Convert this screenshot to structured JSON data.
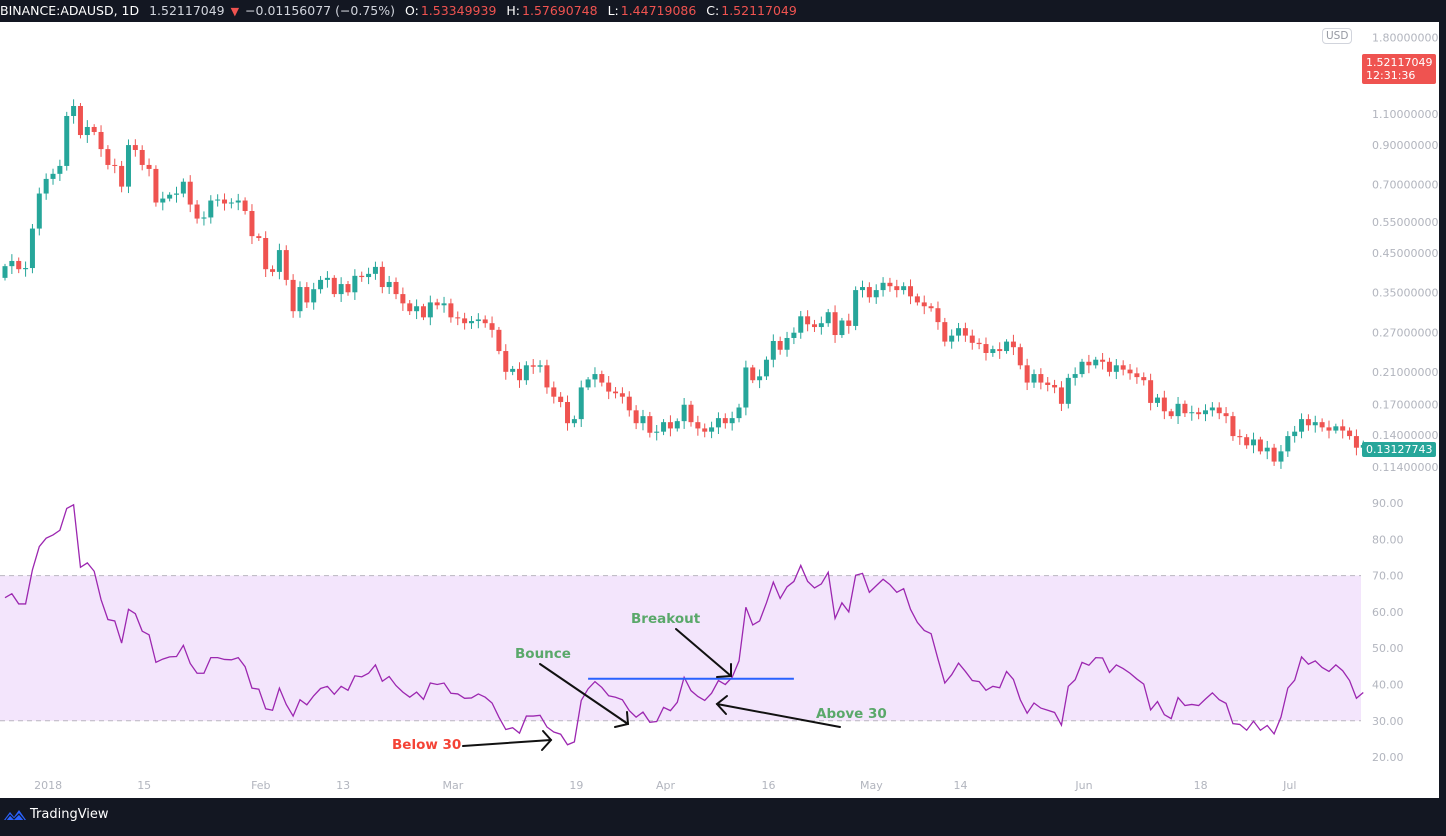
{
  "header": {
    "symbol": "BINANCE:ADAUSD, 1D",
    "last": "1.52117049",
    "direction_icon": "triangle-down",
    "change": "−0.01156077 (−0.75%)",
    "o_label": "O:",
    "o": "1.53349939",
    "h_label": "H:",
    "h": "1.57690748",
    "l_label": "L:",
    "l": "1.44719086",
    "c_label": "C:",
    "c": "1.52117049"
  },
  "price_axis": {
    "currency": "USD",
    "labels": [
      "1.80000000",
      "1.10000000",
      "0.90000000",
      "0.70000000",
      "0.55000000",
      "0.45000000",
      "0.35000000",
      "0.27000000",
      "0.21000000",
      "0.17000000",
      "0.14000000",
      "0.11400000"
    ],
    "last_price_badge": {
      "price": "1.52117049",
      "countdown": "12:31:36",
      "color": "#ef5350"
    },
    "last_close_badge": {
      "price": "0.13127743",
      "color": "#26a69a"
    }
  },
  "rsi_axis": {
    "labels": [
      "90.00",
      "80.00",
      "70.00",
      "60.00",
      "50.00",
      "40.00",
      "30.00",
      "20.00"
    ]
  },
  "x_axis": {
    "ticks": [
      {
        "label": "2018",
        "date": "2018-01-01"
      },
      {
        "label": "15",
        "date": "2018-01-15"
      },
      {
        "label": "Feb",
        "date": "2018-02-01"
      },
      {
        "label": "13",
        "date": "2018-02-13"
      },
      {
        "label": "Mar",
        "date": "2018-03-01"
      },
      {
        "label": "19",
        "date": "2018-03-19"
      },
      {
        "label": "Apr",
        "date": "2018-04-01"
      },
      {
        "label": "16",
        "date": "2018-04-16"
      },
      {
        "label": "May",
        "date": "2018-05-01"
      },
      {
        "label": "14",
        "date": "2018-05-14"
      },
      {
        "label": "Jun",
        "date": "2018-06-01"
      },
      {
        "label": "18",
        "date": "2018-06-18"
      },
      {
        "label": "Jul",
        "date": "2018-07-01"
      }
    ]
  },
  "annotations": {
    "below30": "Below 30",
    "bounce": "Bounce",
    "breakout": "Breakout",
    "above30": "Above 30",
    "breakout_level": {
      "value": 41.6,
      "from": "2018-03-21",
      "to": "2018-04-20",
      "color": "#2962ff"
    }
  },
  "footer": {
    "brand": "TradingView"
  },
  "colors": {
    "up": "#26a69a",
    "down": "#ef5350",
    "rsi_line": "#9c27b0",
    "rsi_band": "#f3e5fc",
    "below_text": "#f44336",
    "note_text": "#5aa86a"
  },
  "chart_data": [
    {
      "type": "candlestick",
      "interval": "1D",
      "scale": "log",
      "x_first": "2017-12-26",
      "first_open": 0.384,
      "close": [
        0.414,
        0.428,
        0.406,
        0.409,
        0.527,
        0.66,
        0.725,
        0.749,
        0.788,
        1.086,
        1.158,
        0.961,
        1.012,
        0.98,
        0.878,
        0.793,
        0.788,
        0.69,
        0.901,
        0.873,
        0.793,
        0.773,
        0.623,
        0.639,
        0.655,
        0.66,
        0.712,
        0.615,
        0.562,
        0.566,
        0.631,
        0.635,
        0.619,
        0.623,
        0.631,
        0.59,
        0.502,
        0.496,
        0.406,
        0.399,
        0.459,
        0.379,
        0.31,
        0.362,
        0.328,
        0.357,
        0.379,
        0.384,
        0.346,
        0.369,
        0.35,
        0.389,
        0.386,
        0.394,
        0.412,
        0.362,
        0.374,
        0.346,
        0.326,
        0.31,
        0.32,
        0.298,
        0.328,
        0.322,
        0.326,
        0.298,
        0.296,
        0.287,
        0.291,
        0.294,
        0.287,
        0.275,
        0.24,
        0.21,
        0.214,
        0.199,
        0.219,
        0.217,
        0.219,
        0.19,
        0.179,
        0.173,
        0.151,
        0.155,
        0.19,
        0.2,
        0.207,
        0.196,
        0.185,
        0.183,
        0.179,
        0.164,
        0.151,
        0.158,
        0.142,
        0.143,
        0.152,
        0.146,
        0.153,
        0.17,
        0.152,
        0.146,
        0.143,
        0.147,
        0.156,
        0.151,
        0.156,
        0.167,
        0.216,
        0.199,
        0.204,
        0.227,
        0.256,
        0.242,
        0.261,
        0.27,
        0.3,
        0.285,
        0.28,
        0.287,
        0.308,
        0.266,
        0.292,
        0.282,
        0.355,
        0.362,
        0.339,
        0.355,
        0.372,
        0.364,
        0.355,
        0.364,
        0.341,
        0.328,
        0.32,
        0.316,
        0.289,
        0.255,
        0.265,
        0.278,
        0.265,
        0.253,
        0.251,
        0.237,
        0.243,
        0.24,
        0.255,
        0.246,
        0.219,
        0.196,
        0.207,
        0.196,
        0.193,
        0.19,
        0.171,
        0.202,
        0.207,
        0.224,
        0.219,
        0.227,
        0.224,
        0.21,
        0.219,
        0.213,
        0.208,
        0.203,
        0.199,
        0.172,
        0.178,
        0.163,
        0.158,
        0.171,
        0.161,
        0.162,
        0.16,
        0.164,
        0.167,
        0.161,
        0.158,
        0.139,
        0.138,
        0.131,
        0.136,
        0.126,
        0.129,
        0.118,
        0.126,
        0.139,
        0.143,
        0.155,
        0.149,
        0.152,
        0.147,
        0.144,
        0.148,
        0.144,
        0.139,
        0.129,
        0.1313
      ]
    },
    {
      "type": "line",
      "overbought": 70,
      "oversold": 30,
      "ylim": [
        15,
        95
      ],
      "values": [
        63.9,
        65.0,
        62.2,
        62.2,
        71.6,
        78.0,
        80.3,
        81.2,
        82.5,
        88.5,
        89.5,
        72.3,
        73.5,
        71.2,
        63.4,
        57.9,
        57.5,
        51.4,
        60.7,
        59.5,
        54.7,
        53.7,
        46.1,
        47.0,
        47.6,
        47.7,
        50.8,
        45.8,
        43.1,
        43.1,
        47.4,
        47.4,
        46.9,
        46.8,
        47.4,
        44.9,
        39.0,
        38.7,
        33.3,
        32.9,
        39.0,
        34.5,
        31.3,
        35.8,
        34.4,
        36.9,
        38.9,
        39.5,
        37.3,
        39.5,
        38.4,
        42.4,
        42.1,
        43.1,
        45.4,
        40.9,
        42.2,
        39.7,
        37.9,
        36.5,
        37.9,
        35.9,
        40.4,
        40.0,
        40.4,
        37.6,
        37.4,
        36.2,
        36.3,
        37.4,
        36.5,
        34.9,
        31.0,
        27.6,
        28.1,
        26.6,
        31.3,
        31.3,
        31.5,
        28.3,
        26.9,
        26.3,
        23.4,
        24.2,
        35.6,
        38.8,
        40.8,
        39.2,
        36.9,
        36.5,
        35.8,
        32.8,
        31.0,
        32.4,
        29.6,
        29.8,
        33.7,
        32.8,
        35.1,
        42.0,
        38.3,
        36.7,
        35.6,
        37.6,
        41.1,
        40.0,
        42.0,
        46.5,
        61.3,
        56.4,
        57.5,
        62.5,
        68.2,
        63.7,
        66.9,
        68.4,
        72.8,
        68.4,
        66.6,
        67.7,
        70.9,
        58.2,
        62.5,
        60.0,
        70.1,
        70.6,
        65.4,
        67.2,
        69.0,
        67.5,
        65.4,
        66.4,
        60.7,
        57.1,
        54.9,
        54.0,
        47.0,
        40.4,
        42.7,
        45.9,
        43.6,
        41.1,
        40.8,
        38.4,
        39.5,
        39.1,
        43.6,
        41.4,
        35.8,
        32.1,
        34.9,
        33.5,
        32.9,
        32.3,
        28.8,
        39.5,
        41.3,
        46.1,
        45.3,
        47.4,
        47.3,
        43.3,
        45.4,
        44.4,
        43.1,
        41.5,
        40.1,
        33.0,
        35.3,
        31.7,
        30.6,
        36.4,
        34.2,
        34.5,
        34.2,
        36.0,
        37.7,
        35.8,
        34.8,
        29.2,
        29.0,
        27.4,
        29.9,
        27.4,
        28.7,
        26.4,
        31.0,
        39.0,
        41.2,
        47.6,
        45.6,
        46.5,
        44.7,
        43.6,
        45.4,
        43.8,
        41.1,
        36.2,
        37.8
      ]
    }
  ]
}
